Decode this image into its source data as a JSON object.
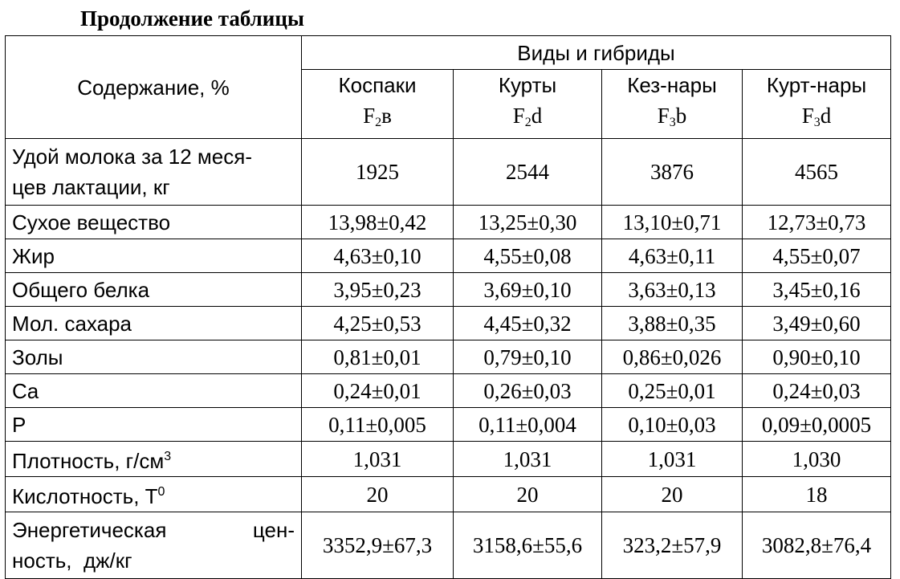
{
  "caption": "Продолжение таблицы",
  "header": {
    "content_label": "Содержание, %",
    "group_label": "Виды и гибриды",
    "columns": [
      {
        "name": "Коспаки",
        "code_main": "F",
        "code_sub": "2",
        "code_tail": "в"
      },
      {
        "name": "Курты",
        "code_main": "F",
        "code_sub": "2",
        "code_tail": "d"
      },
      {
        "name": "Кез-нары",
        "code_main": "F",
        "code_sub": "3",
        "code_tail": "b"
      },
      {
        "name": "Курт-нары",
        "code_main": "F",
        "code_sub": "3",
        "code_tail": "d"
      }
    ]
  },
  "rows": [
    {
      "label_line1": "Удой молока за 12 меся-",
      "label_line2": "цев лактации, кг",
      "values": [
        "1925",
        "2544",
        "3876",
        "4565"
      ]
    },
    {
      "label": "Сухое вещество",
      "values": [
        "13,98±0,42",
        "13,25±0,30",
        "13,10±0,71",
        "12,73±0,73"
      ]
    },
    {
      "label": "Жир",
      "values": [
        "4,63±0,10",
        "4,55±0,08",
        "4,63±0,11",
        "4,55±0,07"
      ]
    },
    {
      "label": "Общего белка",
      "values": [
        "3,95±0,23",
        "3,69±0,10",
        "3,63±0,13",
        "3,45±0,16"
      ]
    },
    {
      "label": "Мол. сахара",
      "values": [
        "4,25±0,53",
        "4,45±0,32",
        "3,88±0,35",
        "3,49±0,60"
      ]
    },
    {
      "label": "Золы",
      "values": [
        "0,81±0,01",
        "0,79±0,10",
        "0,86±0,026",
        "0,90±0,10"
      ]
    },
    {
      "label": "Ca",
      "values": [
        "0,24±0,01",
        "0,26±0,03",
        "0,25±0,01",
        "0,24±0,03"
      ]
    },
    {
      "label": "P",
      "values": [
        "0,11±0,005",
        "0,11±0,004",
        "0,10±0,03",
        "0,09±0,0005"
      ]
    },
    {
      "label_main": "Плотность, г/см",
      "label_sup": "3",
      "values": [
        "1,031",
        "1,031",
        "1,031",
        "1,030"
      ]
    },
    {
      "label_main": "Кислотность, Т",
      "label_sup": "0",
      "values": [
        "20",
        "20",
        "20",
        "18"
      ]
    },
    {
      "label_line1_left": "Энергетическая",
      "label_line1_right": "цен-",
      "label_line2": "ность,  дж/кг",
      "values": [
        "3352,9±67,3",
        "3158,6±55,6",
        "323,2±57,9",
        "3082,8±76,4"
      ]
    }
  ]
}
